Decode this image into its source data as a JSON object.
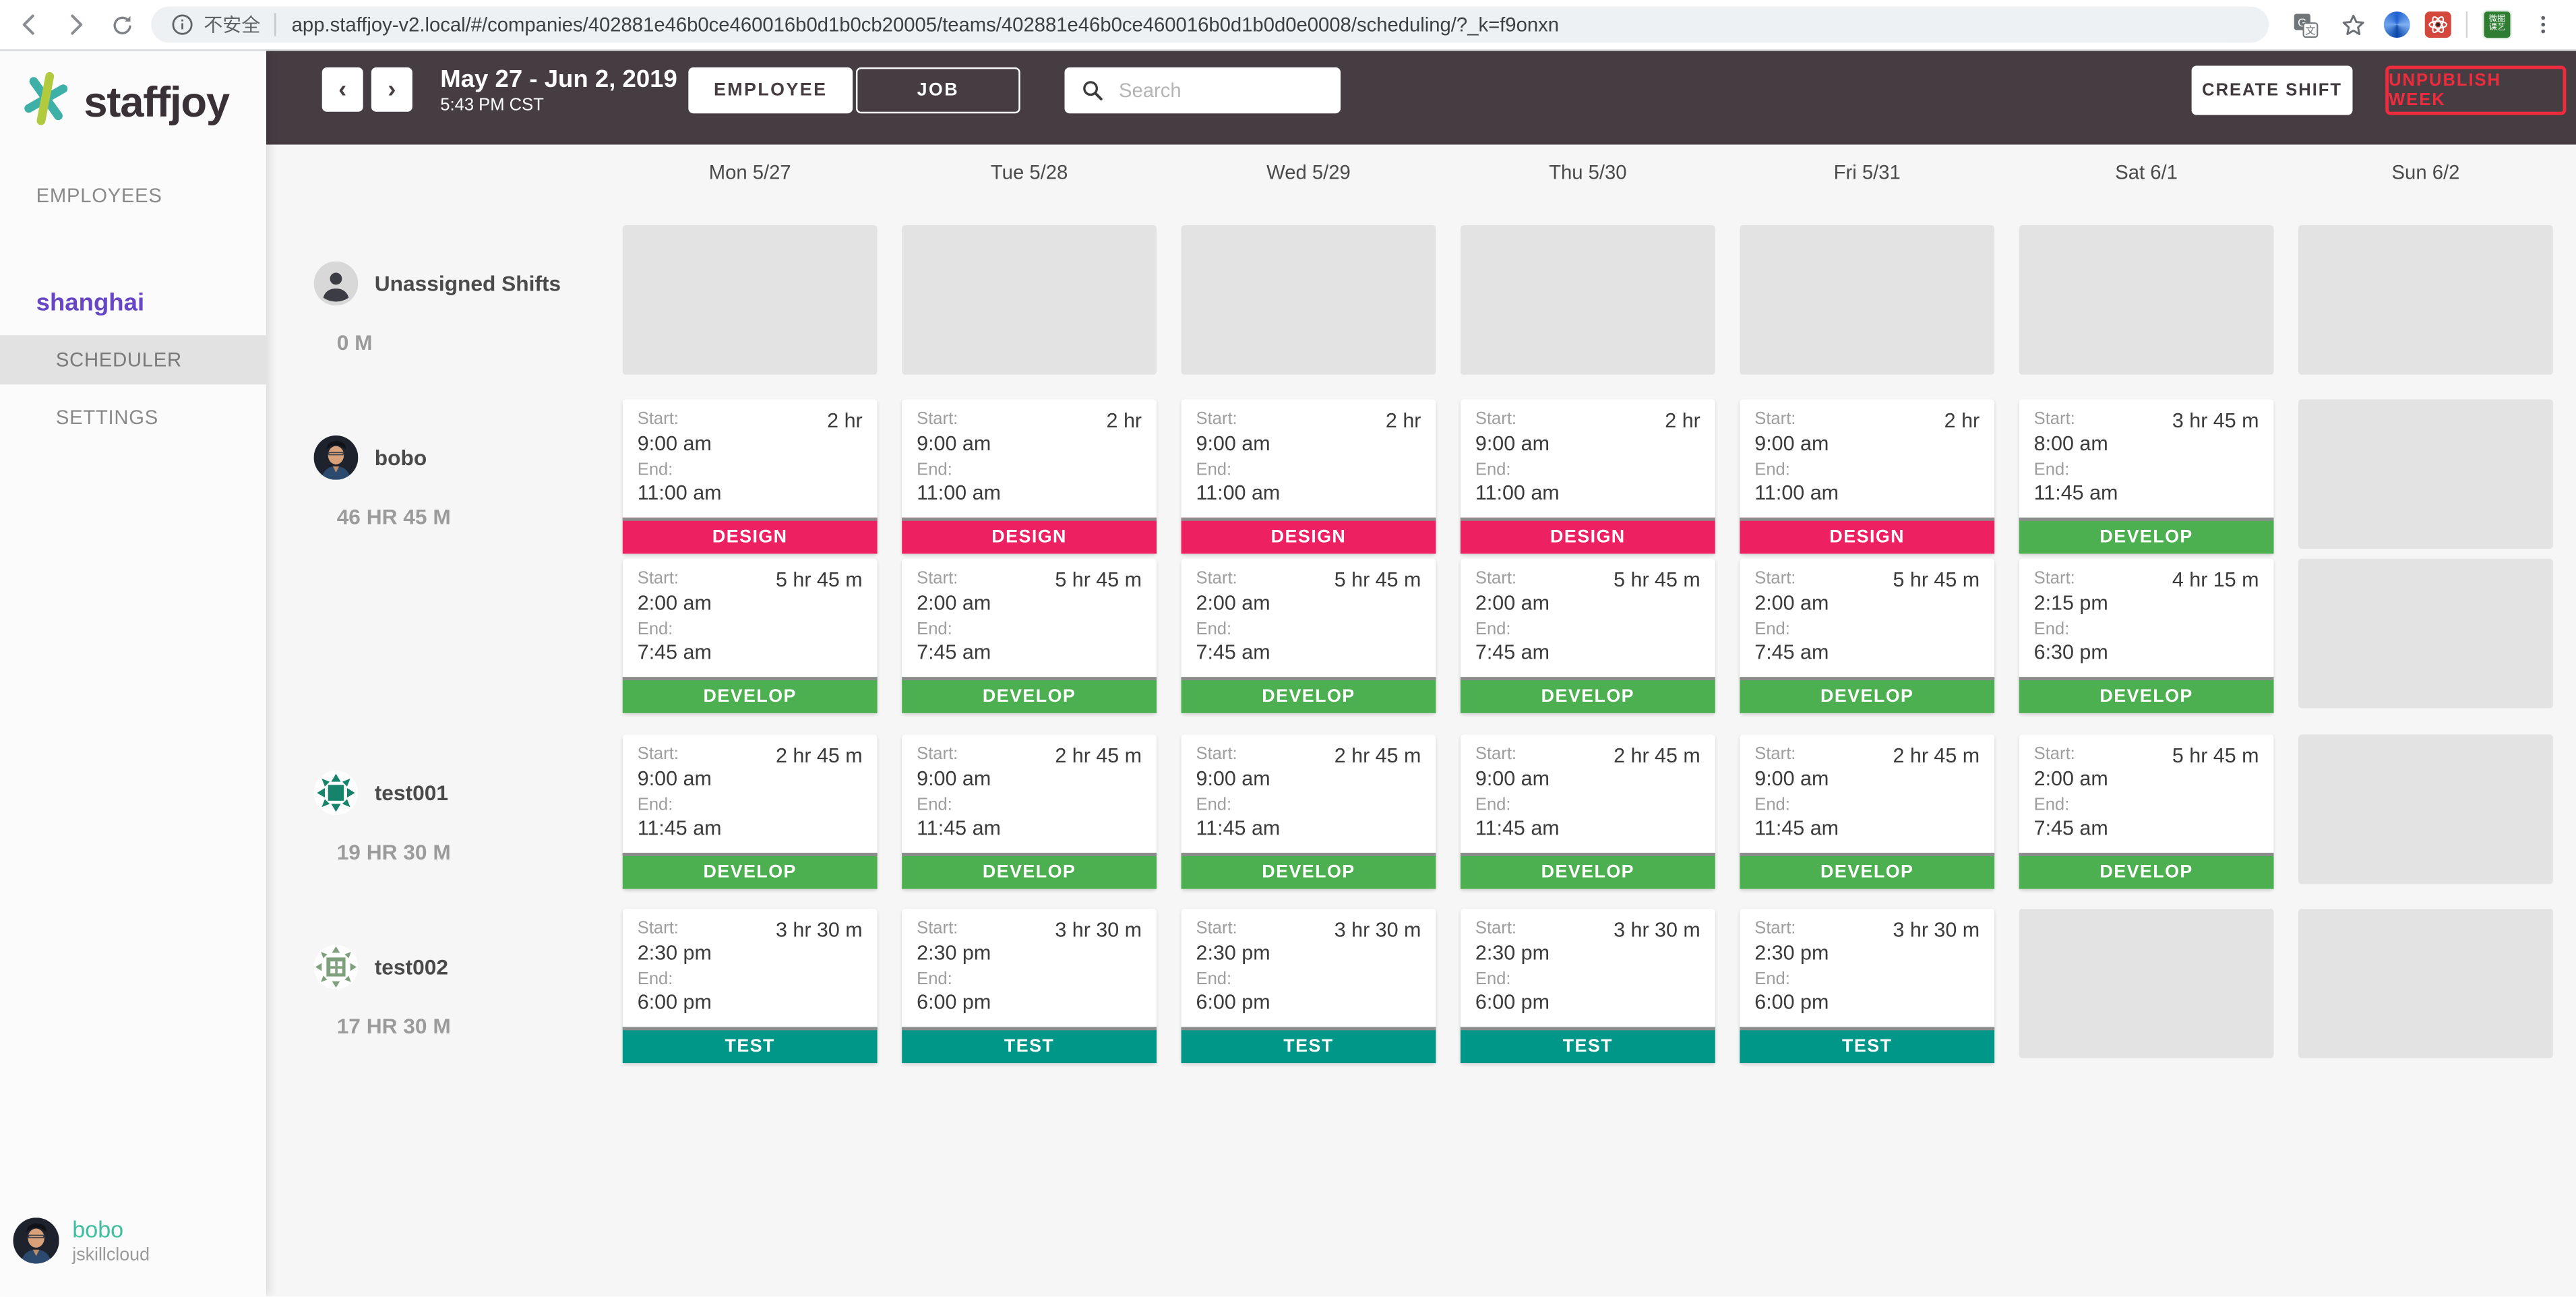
{
  "browser": {
    "security_label": "不安全",
    "url": "app.staffjoy-v2.local/#/companies/402881e46b0ce460016b0d1b0cb20005/teams/402881e46b0ce460016b0d1b0d0e0008/scheduling/?_k=f9onxn",
    "extension_badge_line1": "微掘",
    "extension_badge_line2": "课艺"
  },
  "brand": {
    "logo_text": "staffjoy"
  },
  "sidebar": {
    "employees_label": "EMPLOYEES",
    "team_name": "shanghai",
    "scheduler_label": "SCHEDULER",
    "settings_label": "SETTINGS"
  },
  "topbar": {
    "prev_icon": "‹",
    "next_icon": "›",
    "date_range": "May 27 - Jun 2, 2019",
    "time": "5:43 PM CST",
    "employee_toggle": "EMPLOYEE",
    "job_toggle": "JOB",
    "search_placeholder": "Search",
    "create_shift": "CREATE SHIFT",
    "unpublish_week": "UNPUBLISH WEEK"
  },
  "labels": {
    "start": "Start:",
    "end": "End:"
  },
  "jobs": {
    "DESIGN": "#ed2062",
    "DEVELOP": "#4caf50",
    "TEST": "#009688"
  },
  "colors": {
    "header_bg": "#453d42",
    "accent_purple": "#6747c5",
    "accent_teal": "#40bf9f",
    "unpublish_red": "#ef2b3e"
  },
  "calendar": {
    "days": [
      "Mon 5/27",
      "Tue 5/28",
      "Wed 5/29",
      "Thu 5/30",
      "Fri 5/31",
      "Sat 6/1",
      "Sun 6/2"
    ],
    "rows": [
      {
        "name": "Unassigned Shifts",
        "total": "0 M",
        "avatar": "unassigned-person",
        "shift_rows": [
          [
            {
              "placeholder": true
            },
            {
              "placeholder": true
            },
            {
              "placeholder": true
            },
            {
              "placeholder": true
            },
            {
              "placeholder": true
            },
            {
              "placeholder": true
            },
            {
              "placeholder": true
            }
          ]
        ]
      },
      {
        "name": "bobo",
        "total": "46 HR 45 M",
        "avatar": "photo-bobo",
        "shift_rows": [
          [
            {
              "start": "9:00 am",
              "end": "11:00 am",
              "duration": "2 hr",
              "job": "DESIGN"
            },
            {
              "start": "9:00 am",
              "end": "11:00 am",
              "duration": "2 hr",
              "job": "DESIGN"
            },
            {
              "start": "9:00 am",
              "end": "11:00 am",
              "duration": "2 hr",
              "job": "DESIGN"
            },
            {
              "start": "9:00 am",
              "end": "11:00 am",
              "duration": "2 hr",
              "job": "DESIGN"
            },
            {
              "start": "9:00 am",
              "end": "11:00 am",
              "duration": "2 hr",
              "job": "DESIGN"
            },
            {
              "start": "8:00 am",
              "end": "11:45 am",
              "duration": "3 hr 45 m",
              "job": "DEVELOP"
            },
            {
              "placeholder": true
            }
          ],
          [
            {
              "start": "2:00 am",
              "end": "7:45 am",
              "duration": "5 hr 45 m",
              "job": "DEVELOP"
            },
            {
              "start": "2:00 am",
              "end": "7:45 am",
              "duration": "5 hr 45 m",
              "job": "DEVELOP"
            },
            {
              "start": "2:00 am",
              "end": "7:45 am",
              "duration": "5 hr 45 m",
              "job": "DEVELOP"
            },
            {
              "start": "2:00 am",
              "end": "7:45 am",
              "duration": "5 hr 45 m",
              "job": "DEVELOP"
            },
            {
              "start": "2:00 am",
              "end": "7:45 am",
              "duration": "5 hr 45 m",
              "job": "DEVELOP"
            },
            {
              "start": "2:15 pm",
              "end": "6:30 pm",
              "duration": "4 hr 15 m",
              "job": "DEVELOP"
            },
            {
              "placeholder": true
            }
          ]
        ]
      },
      {
        "name": "test001",
        "total": "19 HR 30 M",
        "avatar": "identicon-dark-green",
        "shift_rows": [
          [
            {
              "start": "9:00 am",
              "end": "11:45 am",
              "duration": "2 hr 45 m",
              "job": "DEVELOP"
            },
            {
              "start": "9:00 am",
              "end": "11:45 am",
              "duration": "2 hr 45 m",
              "job": "DEVELOP"
            },
            {
              "start": "9:00 am",
              "end": "11:45 am",
              "duration": "2 hr 45 m",
              "job": "DEVELOP"
            },
            {
              "start": "9:00 am",
              "end": "11:45 am",
              "duration": "2 hr 45 m",
              "job": "DEVELOP"
            },
            {
              "start": "9:00 am",
              "end": "11:45 am",
              "duration": "2 hr 45 m",
              "job": "DEVELOP"
            },
            {
              "start": "2:00 am",
              "end": "7:45 am",
              "duration": "5 hr 45 m",
              "job": "DEVELOP"
            },
            {
              "placeholder": true
            }
          ]
        ]
      },
      {
        "name": "test002",
        "total": "17 HR 30 M",
        "avatar": "identicon-light-green",
        "shift_rows": [
          [
            {
              "start": "2:30 pm",
              "end": "6:00 pm",
              "duration": "3 hr 30 m",
              "job": "TEST"
            },
            {
              "start": "2:30 pm",
              "end": "6:00 pm",
              "duration": "3 hr 30 m",
              "job": "TEST"
            },
            {
              "start": "2:30 pm",
              "end": "6:00 pm",
              "duration": "3 hr 30 m",
              "job": "TEST"
            },
            {
              "start": "2:30 pm",
              "end": "6:00 pm",
              "duration": "3 hr 30 m",
              "job": "TEST"
            },
            {
              "start": "2:30 pm",
              "end": "6:00 pm",
              "duration": "3 hr 30 m",
              "job": "TEST"
            },
            {
              "placeholder": true
            },
            {
              "placeholder": true
            }
          ]
        ]
      }
    ]
  },
  "user": {
    "name": "bobo",
    "company": "jskillcloud"
  }
}
